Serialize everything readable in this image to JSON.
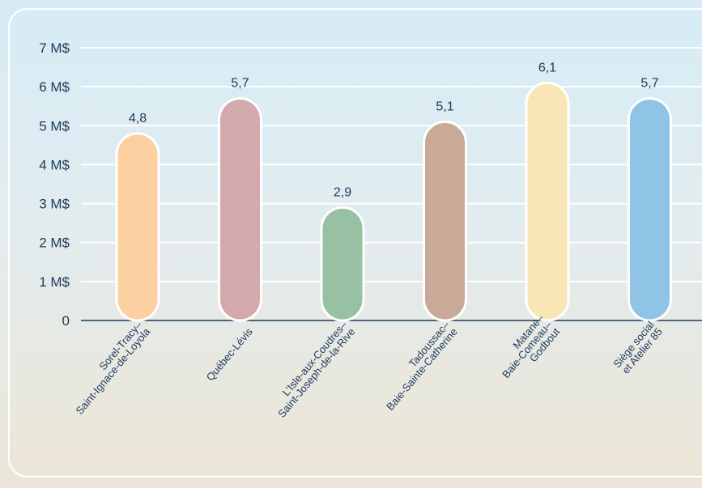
{
  "chart_data": {
    "type": "bar",
    "title": "",
    "xlabel": "",
    "ylabel": "",
    "ylim": [
      0,
      7
    ],
    "grid": true,
    "y_tick_labels": [
      "0",
      "1 M$",
      "2 M$",
      "3 M$",
      "4 M$",
      "5 M$",
      "6 M$",
      "7 M$"
    ],
    "categories": [
      [
        "Sorel-Tracy–",
        "Saint-Ignace-de-Loyola"
      ],
      [
        "Québec-Lévis"
      ],
      [
        "L’Isle-aux-Coudres–",
        "Saint-Joseph-de-la-Rive"
      ],
      [
        "Tadoussac–",
        "Baie-Sainte-Catherine"
      ],
      [
        "Matane–",
        "Baie-Comeau–",
        "Godbout"
      ],
      [
        "Siège social",
        "et Atelier 85"
      ]
    ],
    "values": [
      4.8,
      5.7,
      2.9,
      5.1,
      6.1,
      5.7
    ],
    "value_labels": [
      "4,8",
      "5,7",
      "2,9",
      "5,1",
      "6,1",
      "5,7"
    ],
    "colors": [
      "#fcd0a1",
      "#d3a9ad",
      "#97c1a2",
      "#c9a997",
      "#f8e6b6",
      "#90c4e6"
    ],
    "axis_color": "#1c3a5a",
    "grid_color": "#ffffff"
  }
}
